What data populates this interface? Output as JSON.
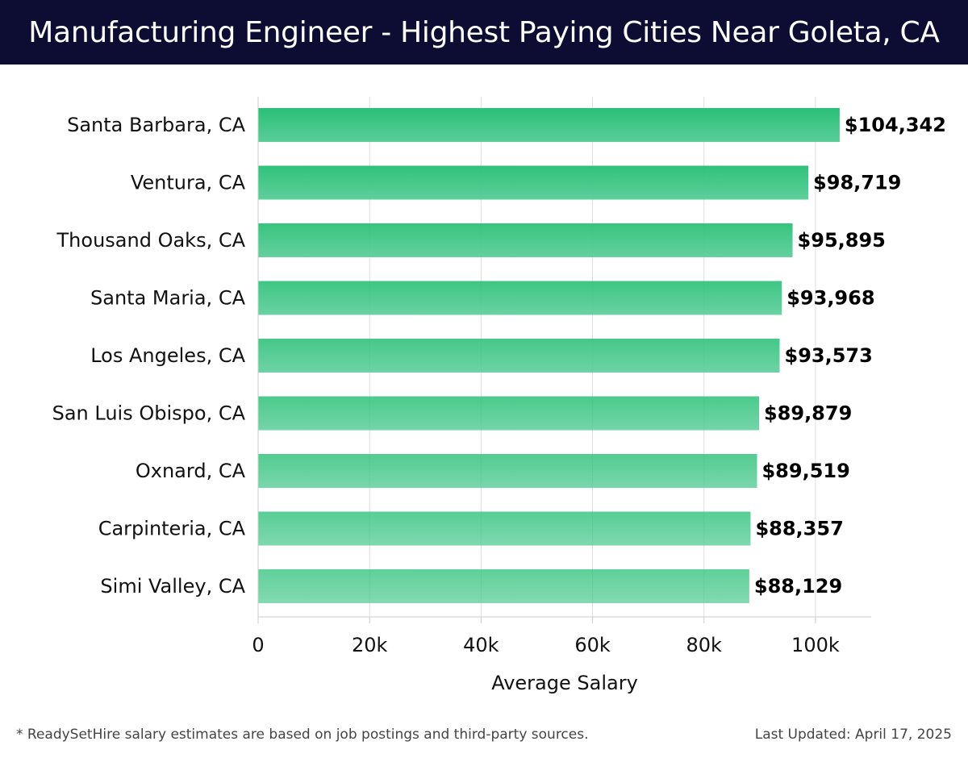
{
  "colors": {
    "header_bg": "#0d0c33",
    "header_text": "#ffffff",
    "bar_top": "#2ac077",
    "bar_bottom": "#5acd98",
    "grid": "#dddddd",
    "axis": "#cccccc",
    "label_text": "#111111"
  },
  "chart_data": {
    "type": "bar",
    "orientation": "horizontal",
    "title": "Manufacturing Engineer - Highest Paying Cities Near Goleta, CA",
    "xlabel": "Average Salary",
    "ylabel": "",
    "xlim": [
      0,
      110000
    ],
    "xticks": [
      0,
      20000,
      40000,
      60000,
      80000,
      100000
    ],
    "xtick_labels": [
      "0",
      "20k",
      "40k",
      "60k",
      "80k",
      "100k"
    ],
    "grid": true,
    "categories": [
      "Santa Barbara, CA",
      "Ventura, CA",
      "Thousand Oaks, CA",
      "Santa Maria, CA",
      "Los Angeles, CA",
      "San Luis Obispo, CA",
      "Oxnard, CA",
      "Carpinteria, CA",
      "Simi Valley, CA"
    ],
    "values": [
      104342,
      98719,
      95895,
      93968,
      93573,
      89879,
      89519,
      88357,
      88129
    ],
    "value_labels": [
      "$104,342",
      "$98,719",
      "$95,895",
      "$93,968",
      "$93,573",
      "$89,879",
      "$89,519",
      "$88,357",
      "$88,129"
    ]
  },
  "footer": {
    "note": "* ReadySetHire salary estimates are based on job postings and third-party sources.",
    "updated": "Last Updated: April 17, 2025"
  }
}
